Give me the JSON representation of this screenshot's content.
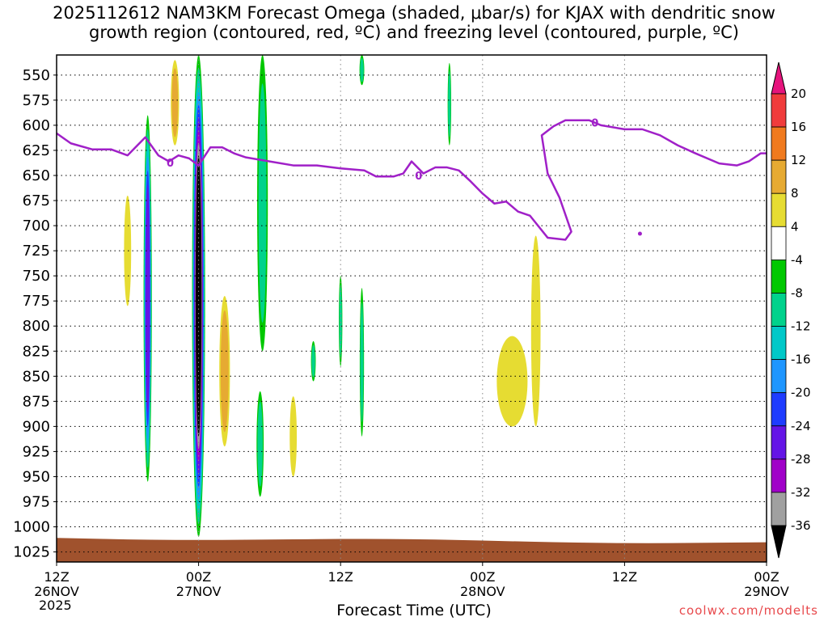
{
  "title": {
    "line1": "2025112612 NAM3KM Forecast Omega (shaded, μbar/s) for KJAX with dendritic snow",
    "line2": "growth region (contoured, red, ºC) and freezing level (contoured, purple, ºC)"
  },
  "credit": "coolwx.com/modelts",
  "chart_data": {
    "type": "heatmap",
    "title": "2025112612 NAM3KM Forecast Omega (shaded, μbar/s) for KJAX with dendritic snow growth region (contoured, red, ºC) and freezing level (contoured, purple, ºC)",
    "xlabel": "Forecast Time (UTC)",
    "ylabel": "",
    "x_ticks": [
      {
        "hour": 0,
        "line1": "12Z",
        "line2": "26NOV",
        "line3": "2025"
      },
      {
        "hour": 12,
        "line1": "00Z",
        "line2": "27NOV",
        "line3": ""
      },
      {
        "hour": 24,
        "line1": "12Z",
        "line2": "",
        "line3": ""
      },
      {
        "hour": 36,
        "line1": "00Z",
        "line2": "28NOV",
        "line3": ""
      },
      {
        "hour": 48,
        "line1": "12Z",
        "line2": "",
        "line3": ""
      },
      {
        "hour": 60,
        "line1": "00Z",
        "line2": "29NOV",
        "line3": ""
      }
    ],
    "xlim": [
      0,
      60
    ],
    "y_ticks": [
      550,
      575,
      600,
      625,
      650,
      675,
      700,
      725,
      750,
      775,
      800,
      825,
      850,
      875,
      900,
      925,
      950,
      975,
      1000,
      1025
    ],
    "ylim": [
      530,
      1035
    ],
    "grid": true,
    "colorbar": {
      "labels": [
        20,
        16,
        12,
        8,
        4,
        -4,
        -8,
        -12,
        -16,
        -20,
        -24,
        -28,
        -32,
        -36
      ],
      "colors": [
        "#f03c3c",
        "#f07a1e",
        "#e6aa32",
        "#e6dc32",
        "#ffffff",
        "#00c800",
        "#00d28c",
        "#00c8c8",
        "#1e96ff",
        "#1e3cff",
        "#6414e6",
        "#a000c8",
        "#a0a0a0"
      ],
      "top_arrow_color": "#e6147d",
      "bottom_arrow_color": "#000000"
    },
    "freezing_level": {
      "label": "0",
      "color": "#a020c8",
      "points": [
        [
          0,
          608
        ],
        [
          1.2,
          618
        ],
        [
          3,
          624
        ],
        [
          4.6,
          624
        ],
        [
          6,
          630
        ],
        [
          7.5,
          612
        ],
        [
          8.6,
          630
        ],
        [
          9.5,
          636
        ],
        [
          10.3,
          630
        ],
        [
          11.2,
          633
        ],
        [
          12,
          640
        ],
        [
          13,
          622
        ],
        [
          14,
          622
        ],
        [
          15,
          628
        ],
        [
          16,
          632
        ],
        [
          18,
          636
        ],
        [
          20,
          640
        ],
        [
          22,
          640
        ],
        [
          24,
          643
        ],
        [
          26,
          645
        ],
        [
          27,
          651
        ],
        [
          28.5,
          651
        ],
        [
          29.3,
          648
        ],
        [
          30,
          636
        ],
        [
          31,
          648
        ],
        [
          32,
          642
        ],
        [
          33,
          642
        ],
        [
          34,
          645
        ],
        [
          35,
          656
        ],
        [
          36,
          668
        ],
        [
          37,
          678
        ],
        [
          38,
          676
        ],
        [
          39,
          686
        ],
        [
          40,
          690
        ],
        [
          41.5,
          712
        ],
        [
          43,
          714
        ],
        [
          43.5,
          706
        ],
        [
          42.5,
          672
        ],
        [
          41.5,
          648
        ],
        [
          41,
          610
        ],
        [
          42,
          601
        ],
        [
          43,
          595
        ],
        [
          45,
          595
        ],
        [
          46,
          600
        ],
        [
          48,
          604
        ],
        [
          49.5,
          604
        ],
        [
          51,
          610
        ],
        [
          52.5,
          620
        ],
        [
          54,
          628
        ],
        [
          56,
          638
        ],
        [
          57.5,
          640
        ],
        [
          58.5,
          636
        ],
        [
          59.5,
          628
        ],
        [
          60,
          628
        ]
      ],
      "dot": [
        49.3,
        708
      ]
    },
    "omega_features": [
      {
        "type": "upward",
        "t_center": 12,
        "t_halfwidth": 0.55,
        "p_top": 530,
        "p_bottom": 1010,
        "max_level": -36,
        "description": "strong ascent core"
      },
      {
        "type": "upward",
        "t_center": 7.7,
        "t_halfwidth": 0.35,
        "p_top": 590,
        "p_bottom": 955,
        "max_level": -24
      },
      {
        "type": "upward",
        "t_center": 17.4,
        "t_halfwidth": 0.45,
        "p_top": 530,
        "p_bottom": 825,
        "max_level": -8
      },
      {
        "type": "upward",
        "t_center": 17.2,
        "t_halfwidth": 0.3,
        "p_top": 865,
        "p_bottom": 970,
        "max_level": -8
      },
      {
        "type": "upward",
        "t_center": 25.8,
        "t_halfwidth": 0.2,
        "p_top": 530,
        "p_bottom": 560,
        "max_level": -8
      },
      {
        "type": "upward",
        "t_center": 25.8,
        "t_halfwidth": 0.18,
        "p_top": 762,
        "p_bottom": 910,
        "max_level": -8
      },
      {
        "type": "upward",
        "t_center": 24.0,
        "t_halfwidth": 0.15,
        "p_top": 750,
        "p_bottom": 840,
        "max_level": -8
      },
      {
        "type": "upward",
        "t_center": 21.7,
        "t_halfwidth": 0.2,
        "p_top": 815,
        "p_bottom": 855,
        "max_level": -8
      },
      {
        "type": "upward",
        "t_center": 33.2,
        "t_halfwidth": 0.15,
        "p_top": 538,
        "p_bottom": 620,
        "max_level": -8
      },
      {
        "type": "downward",
        "t_center": 10.0,
        "t_halfwidth": 0.35,
        "p_top": 535,
        "p_bottom": 620,
        "max_level": 8
      },
      {
        "type": "downward",
        "t_center": 6.0,
        "t_halfwidth": 0.3,
        "p_top": 670,
        "p_bottom": 780,
        "max_level": 4
      },
      {
        "type": "downward",
        "t_center": 14.2,
        "t_halfwidth": 0.45,
        "p_top": 770,
        "p_bottom": 920,
        "max_level": 8
      },
      {
        "type": "downward",
        "t_center": 20.0,
        "t_halfwidth": 0.3,
        "p_top": 870,
        "p_bottom": 950,
        "max_level": 4
      },
      {
        "type": "downward",
        "t_center": 38.5,
        "t_halfwidth": 1.3,
        "p_top": 810,
        "p_bottom": 900,
        "max_level": 4
      },
      {
        "type": "downward",
        "t_center": 40.5,
        "t_halfwidth": 0.4,
        "p_top": 710,
        "p_bottom": 900,
        "max_level": 4
      }
    ],
    "terrain": {
      "color": "#a0522d",
      "p_surface_range": [
        1011,
        1016
      ]
    }
  }
}
